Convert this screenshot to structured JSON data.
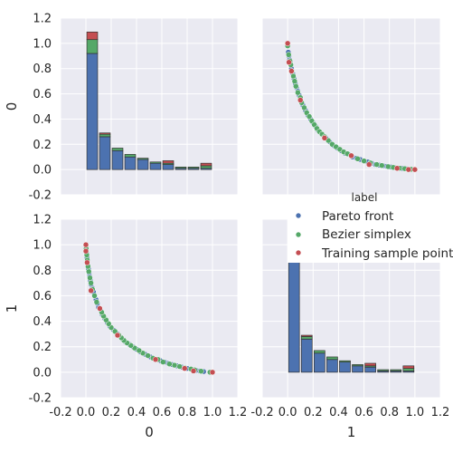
{
  "colors": {
    "Pareto front": "#4c72b0",
    "Bezier simplex": "#55a868",
    "Training sample point": "#c44e52",
    "panel_bg": "#eaeaf2",
    "grid": "#ffffff"
  },
  "chart_data": {
    "type": "pairplot",
    "variables": [
      "0",
      "1"
    ],
    "legend": {
      "title": "label",
      "placement": "right",
      "entries": [
        "Pareto front",
        "Bezier simplex",
        "Training sample point"
      ]
    },
    "axes": {
      "lim": [
        -0.2,
        1.2
      ],
      "ticks": [
        "-0.2",
        "0.0",
        "0.2",
        "0.4",
        "0.6",
        "0.8",
        "1.0",
        "1.2"
      ],
      "xlabels": [
        "0",
        "1"
      ],
      "ylabels": [
        "0",
        "1"
      ]
    },
    "histogram": {
      "bin_centers": [
        0.05,
        0.15,
        0.25,
        0.35,
        0.45,
        0.55,
        0.65,
        0.75,
        0.85,
        0.95
      ],
      "stacks": [
        {
          "name": "Pareto front",
          "values": [
            0.92,
            0.26,
            0.15,
            0.1,
            0.08,
            0.05,
            0.04,
            0.01,
            0.01,
            0.01
          ]
        },
        {
          "name": "Bezier simplex",
          "values": [
            0.11,
            0.02,
            0.02,
            0.02,
            0.01,
            0.01,
            0.01,
            0.01,
            0.01,
            0.02
          ]
        },
        {
          "name": "Training sample point",
          "values": [
            0.06,
            0.01,
            0.0,
            0.0,
            0.0,
            0.0,
            0.02,
            0.0,
            0.0,
            0.02
          ]
        }
      ]
    },
    "scatter": {
      "Pareto front": [
        [
          0.0,
          1.0
        ],
        [
          0.005,
          0.93
        ],
        [
          0.01,
          0.9
        ],
        [
          0.015,
          0.87
        ],
        [
          0.02,
          0.85
        ],
        [
          0.03,
          0.8
        ],
        [
          0.04,
          0.76
        ],
        [
          0.05,
          0.72
        ],
        [
          0.06,
          0.68
        ],
        [
          0.07,
          0.65
        ],
        [
          0.08,
          0.62
        ],
        [
          0.09,
          0.59
        ],
        [
          0.1,
          0.56
        ],
        [
          0.12,
          0.51
        ],
        [
          0.14,
          0.47
        ],
        [
          0.16,
          0.43
        ],
        [
          0.18,
          0.4
        ],
        [
          0.2,
          0.37
        ],
        [
          0.22,
          0.34
        ],
        [
          0.24,
          0.31
        ],
        [
          0.26,
          0.29
        ],
        [
          0.28,
          0.27
        ],
        [
          0.3,
          0.25
        ],
        [
          0.33,
          0.22
        ],
        [
          0.36,
          0.19
        ],
        [
          0.39,
          0.17
        ],
        [
          0.42,
          0.15
        ],
        [
          0.45,
          0.13
        ],
        [
          0.48,
          0.12
        ],
        [
          0.51,
          0.1
        ],
        [
          0.54,
          0.09
        ],
        [
          0.57,
          0.08
        ],
        [
          0.6,
          0.07
        ],
        [
          0.63,
          0.06
        ],
        [
          0.66,
          0.05
        ],
        [
          0.69,
          0.04
        ],
        [
          0.72,
          0.035
        ],
        [
          0.75,
          0.03
        ],
        [
          0.78,
          0.025
        ],
        [
          0.81,
          0.02
        ],
        [
          0.84,
          0.015
        ],
        [
          0.87,
          0.012
        ],
        [
          0.9,
          0.009
        ],
        [
          0.93,
          0.006
        ],
        [
          0.96,
          0.003
        ],
        [
          1.0,
          0.0
        ]
      ],
      "Bezier simplex": [
        [
          0.0,
          0.98
        ],
        [
          0.008,
          0.91
        ],
        [
          0.018,
          0.86
        ],
        [
          0.025,
          0.83
        ],
        [
          0.035,
          0.78
        ],
        [
          0.045,
          0.74
        ],
        [
          0.055,
          0.7
        ],
        [
          0.065,
          0.66
        ],
        [
          0.08,
          0.61
        ],
        [
          0.1,
          0.57
        ],
        [
          0.11,
          0.53
        ],
        [
          0.13,
          0.49
        ],
        [
          0.15,
          0.45
        ],
        [
          0.17,
          0.42
        ],
        [
          0.19,
          0.385
        ],
        [
          0.21,
          0.355
        ],
        [
          0.23,
          0.325
        ],
        [
          0.25,
          0.3
        ],
        [
          0.27,
          0.28
        ],
        [
          0.29,
          0.26
        ],
        [
          0.32,
          0.23
        ],
        [
          0.35,
          0.2
        ],
        [
          0.38,
          0.18
        ],
        [
          0.41,
          0.16
        ],
        [
          0.44,
          0.14
        ],
        [
          0.47,
          0.125
        ],
        [
          0.5,
          0.11
        ],
        [
          0.55,
          0.085
        ],
        [
          0.6,
          0.068
        ],
        [
          0.65,
          0.052
        ],
        [
          0.7,
          0.04
        ],
        [
          0.74,
          0.032
        ],
        [
          0.79,
          0.023
        ],
        [
          0.83,
          0.017
        ],
        [
          0.88,
          0.011
        ],
        [
          0.92,
          0.007
        ],
        [
          0.97,
          0.002
        ],
        [
          1.0,
          0.0
        ]
      ],
      "Training sample point": [
        [
          0.0,
          1.0
        ],
        [
          0.01,
          0.85
        ],
        [
          0.03,
          0.78
        ],
        [
          0.1,
          0.55
        ],
        [
          0.29,
          0.25
        ],
        [
          0.5,
          0.11
        ],
        [
          0.64,
          0.04
        ],
        [
          0.86,
          0.01
        ],
        [
          0.95,
          0.0
        ],
        [
          1.0,
          0.0
        ]
      ]
    }
  }
}
